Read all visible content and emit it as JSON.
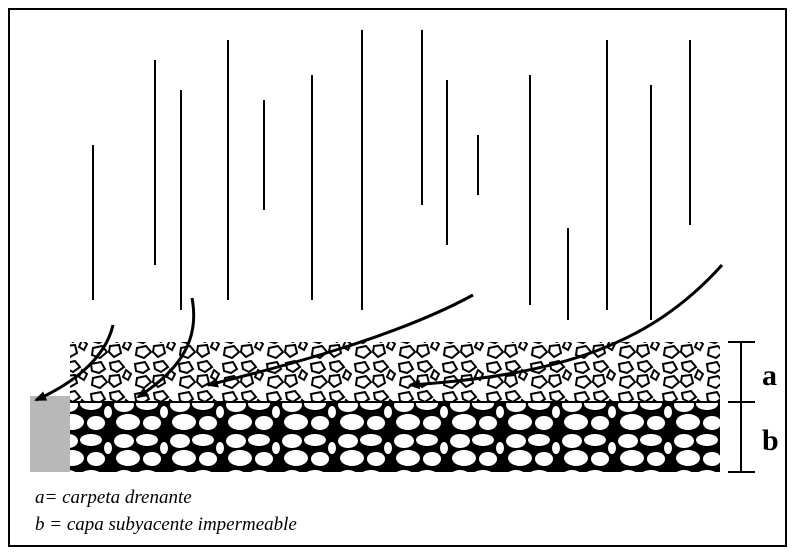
{
  "layer_labels": {
    "a": "a",
    "b": "b"
  },
  "legend": [
    "a= carpeta drenante",
    "b = capa subyacente impermeable"
  ]
}
